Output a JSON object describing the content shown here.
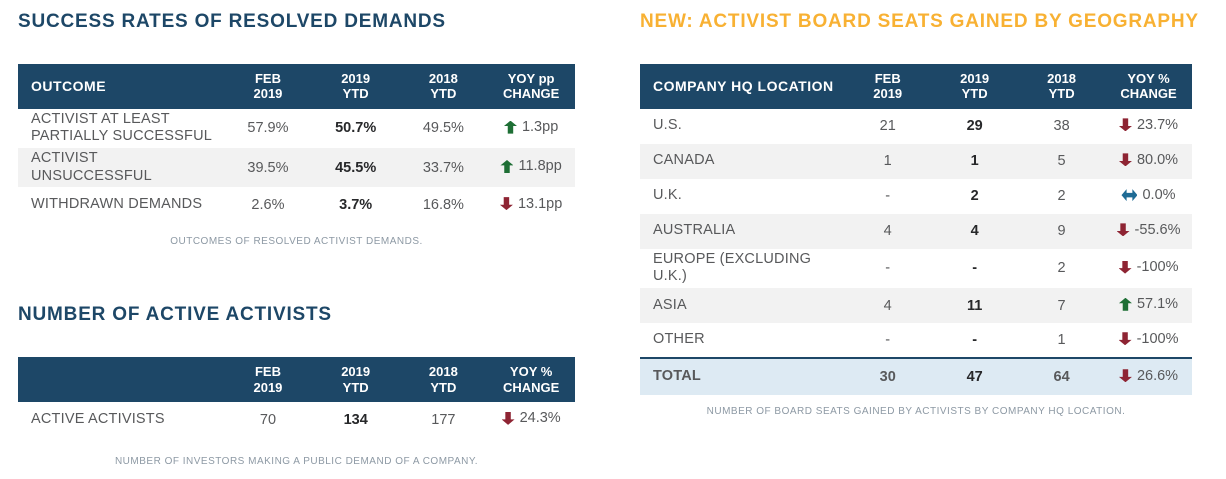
{
  "colors": {
    "navy": "#1d4767",
    "gold": "#f8b133",
    "green": "#1e6f35",
    "maroon": "#8e2433",
    "blue": "#1e6b95",
    "stripe": "#f2f2f2",
    "totalbg": "#ddeaf3",
    "text": "#58595b",
    "dark": "#27282a",
    "caption": "#8d99a4",
    "pagebg": "#ffffff"
  },
  "tables": [
    {
      "id": "success-rates",
      "title": "SUCCESS RATES OF RESOLVED DEMANDS",
      "columns": [
        "OUTCOME",
        "FEB\n2019",
        "2019\nYTD",
        "2018\nYTD",
        "YOY pp\nCHANGE"
      ],
      "rows": [
        {
          "label": "ACTIVIST AT LEAST PARTIALLY SUCCESSFUL",
          "feb": "57.9%",
          "y2019": "50.7%",
          "y2018": "49.5%",
          "change": {
            "dir": "up",
            "value": "1.3pp"
          }
        },
        {
          "label": "ACTIVIST UNSUCCESSFUL",
          "feb": "39.5%",
          "y2019": "45.5%",
          "y2018": "33.7%",
          "change": {
            "dir": "up",
            "value": "11.8pp"
          }
        },
        {
          "label": "WITHDRAWN DEMANDS",
          "feb": "2.6%",
          "y2019": "3.7%",
          "y2018": "16.8%",
          "change": {
            "dir": "down",
            "value": "13.1pp"
          }
        }
      ],
      "caption": "OUTCOMES OF RESOLVED ACTIVIST DEMANDS."
    },
    {
      "id": "active-activists",
      "title": "NUMBER OF ACTIVE ACTIVISTS",
      "columns": [
        "",
        "FEB\n2019",
        "2019\nYTD",
        "2018\nYTD",
        "YOY %\nCHANGE"
      ],
      "rows": [
        {
          "label": "ACTIVE ACTIVISTS",
          "feb": "70",
          "y2019": "134",
          "y2018": "177",
          "change": {
            "dir": "down",
            "value": "24.3%"
          }
        }
      ],
      "caption": "NUMBER OF INVESTORS MAKING A PUBLIC DEMAND OF A COMPANY."
    },
    {
      "id": "board-seats",
      "title": "NEW: ACTIVIST BOARD SEATS GAINED BY GEOGRAPHY",
      "columns": [
        "COMPANY HQ LOCATION",
        "FEB\n2019",
        "2019\nYTD",
        "2018\nYTD",
        "YOY %\nCHANGE"
      ],
      "rows": [
        {
          "label": "U.S.",
          "feb": "21",
          "y2019": "29",
          "y2018": "38",
          "change": {
            "dir": "down",
            "value": "23.7%"
          }
        },
        {
          "label": "CANADA",
          "feb": "1",
          "y2019": "1",
          "y2018": "5",
          "change": {
            "dir": "down",
            "value": "80.0%"
          }
        },
        {
          "label": "U.K.",
          "feb": "-",
          "y2019": "2",
          "y2018": "2",
          "change": {
            "dir": "flat",
            "value": "0.0%"
          }
        },
        {
          "label": "AUSTRALIA",
          "feb": "4",
          "y2019": "4",
          "y2018": "9",
          "change": {
            "dir": "down",
            "value": "-55.6%"
          }
        },
        {
          "label": "EUROPE (EXCLUDING U.K.)",
          "feb": "-",
          "y2019": "-",
          "y2018": "2",
          "change": {
            "dir": "down",
            "value": "-100%"
          }
        },
        {
          "label": "ASIA",
          "feb": "4",
          "y2019": "11",
          "y2018": "7",
          "change": {
            "dir": "up",
            "value": "57.1%"
          }
        },
        {
          "label": "OTHER",
          "feb": "-",
          "y2019": "-",
          "y2018": "1",
          "change": {
            "dir": "down",
            "value": "-100%"
          }
        },
        {
          "label": "TOTAL",
          "feb": "30",
          "y2019": "47",
          "y2018": "64",
          "change": {
            "dir": "down",
            "value": "26.6%"
          },
          "total": true
        }
      ],
      "caption": "NUMBER OF BOARD SEATS GAINED BY ACTIVISTS BY COMPANY HQ LOCATION."
    }
  ]
}
